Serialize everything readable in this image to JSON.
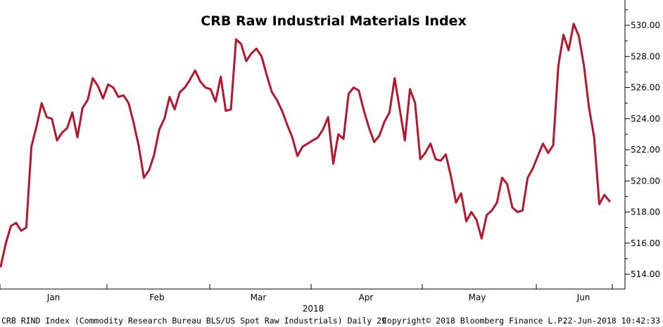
{
  "chart_data": {
    "type": "line",
    "title": "CRB Raw Industrial Materials Index",
    "x_year_label": "2018",
    "month_labels": [
      "Jan",
      "Feb",
      "Mar",
      "Apr",
      "May",
      "Jun"
    ],
    "y_tick_labels": [
      "514.00",
      "516.00",
      "518.00",
      "520.00",
      "522.00",
      "524.00",
      "526.00",
      "528.00",
      "530.00"
    ],
    "y_ticks": [
      514,
      516,
      518,
      520,
      522,
      524,
      526,
      528,
      530
    ],
    "ylim": [
      513.3,
      531.3
    ],
    "grid": false,
    "series_color": "#b3172e",
    "series": [
      {
        "name": "",
        "values": [
          514.5,
          516.0,
          517.1,
          517.3,
          516.8,
          517.0,
          522.2,
          523.5,
          525.0,
          524.1,
          524.0,
          522.6,
          523.1,
          523.4,
          524.4,
          522.8,
          524.7,
          525.2,
          526.6,
          526.1,
          525.3,
          526.2,
          526.0,
          525.4,
          525.5,
          525.0,
          523.7,
          522.2,
          520.2,
          520.7,
          521.7,
          523.3,
          524.0,
          525.4,
          524.6,
          525.7,
          526.0,
          526.5,
          527.1,
          526.4,
          526.0,
          525.9,
          525.1,
          526.7,
          524.5,
          524.6,
          529.1,
          528.8,
          527.7,
          528.2,
          528.5,
          528.0,
          526.8,
          525.7,
          525.2,
          524.5,
          523.6,
          522.8,
          521.6,
          522.2,
          522.4,
          522.6,
          522.8,
          523.3,
          524.1,
          521.1,
          523.0,
          522.7,
          525.6,
          526.0,
          525.8,
          524.5,
          523.4,
          522.5,
          522.9,
          523.8,
          524.4,
          526.6,
          524.6,
          522.6,
          525.9,
          525.0,
          521.4,
          521.8,
          522.4,
          521.4,
          521.3,
          521.7,
          520.3,
          518.6,
          519.2,
          517.4,
          518.0,
          517.5,
          516.3,
          517.8,
          518.1,
          518.6,
          520.2,
          519.8,
          518.3,
          518.0,
          518.1,
          520.2,
          520.8,
          521.6,
          522.4,
          521.8,
          522.3,
          527.4,
          529.4,
          528.4,
          530.1,
          529.3,
          527.4,
          524.7,
          522.8,
          518.5,
          519.1,
          518.7
        ]
      }
    ]
  },
  "footer": {
    "left": "CRB RIND Index (Commodity Research Bureau BLS/US Spot Raw Industrials)  Daily 29",
    "copyright": "Copyright© 2018 Bloomberg Finance L.P.",
    "timestamp": "22-Jun-2018 10:42:33"
  }
}
